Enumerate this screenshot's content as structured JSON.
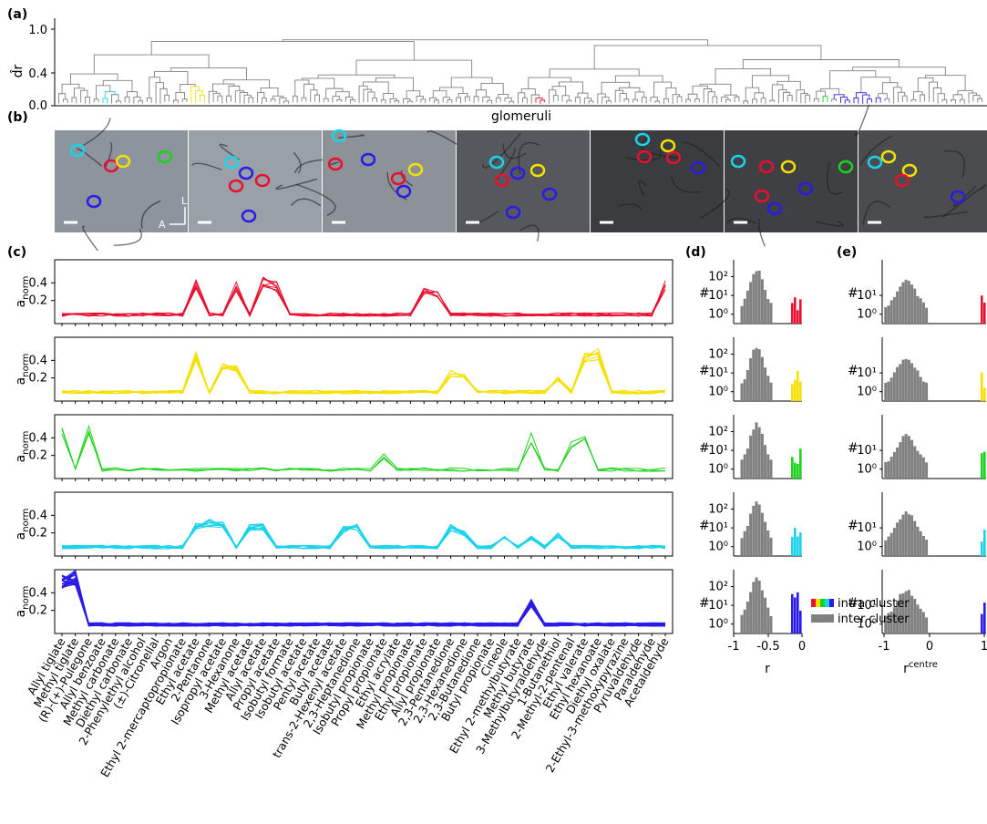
{
  "panels": {
    "a": {
      "label": "(a)",
      "ylabel": "d̂r",
      "yticks": [
        "0.0",
        "0.4",
        "1.0"
      ],
      "xlabel": "glomeruli"
    },
    "b": {
      "label": "(b)",
      "orientation_L": "L",
      "orientation_A": "A",
      "image_count": 7
    },
    "c": {
      "label": "(c)",
      "ylabel_base": "a",
      "ylabel_sub": "norm",
      "rows": [
        {
          "cluster": "red",
          "color": "#e8102e",
          "yticks": [
            "0.2",
            "0.4"
          ]
        },
        {
          "cluster": "yellow",
          "color": "#f5e000",
          "yticks": [
            "0.2",
            "0.4"
          ]
        },
        {
          "cluster": "green",
          "color": "#1cd21c",
          "yticks": [
            "0.2",
            "0.4"
          ]
        },
        {
          "cluster": "cyan",
          "color": "#1ad3ea",
          "yticks": [
            "0.2",
            "0.4"
          ]
        },
        {
          "cluster": "blue",
          "color": "#2b1be8",
          "yticks": [
            "0.2",
            "0.4"
          ]
        }
      ]
    },
    "d": {
      "label": "(d)",
      "ylabel": "#",
      "yticks": [
        "10⁰",
        "10¹",
        "10²"
      ],
      "xticks": [
        "-1",
        "-0.5",
        "0"
      ],
      "xlabel": "r"
    },
    "e": {
      "label": "(e)",
      "ylabel": "#",
      "yticks": [
        "10⁰",
        "10¹"
      ],
      "xticks": [
        "-1",
        "0",
        "1"
      ],
      "xlabel_base": "r",
      "xlabel_sup": "centre"
    }
  },
  "legend": {
    "intra": "intra cluster",
    "inter": "inter cluster"
  },
  "colors": {
    "red": "#e8102e",
    "yellow": "#f5e000",
    "green": "#1cd21c",
    "cyan": "#1ad3ea",
    "blue": "#2b1be8",
    "gray": "#808080",
    "dendro": "#808080"
  },
  "odorants": [
    "Allyl tiglate",
    "Methyl tiglate",
    "(R)-(+)-Pulegone",
    "Allyl benzoate",
    "Methyl carbonate",
    "Diethyl carbonate",
    "2-Phenylethyl alcohol",
    "(±)-Citronellal",
    "Argon",
    "Ethyl 2-mercaptopropionate",
    "Ethyl acetate",
    "2-Pentanone",
    "Isopropyl acetate",
    "3-Hexanone",
    "Methyl acetate",
    "Allyl acetate",
    "Propyl acetate",
    "Isobutyl formate",
    "Isobutyl acetate",
    "Pentyl acetate",
    "Butyl acetate",
    "trans-2-Hexenyl acetate",
    "2,3-Heptanedione",
    "Isobutyl propionate",
    "Propyl propionate",
    "Ethyl acrylate",
    "Methyl propionate",
    "Ethyl propionate",
    "Allyl propionate",
    "2,3-Pentanedione",
    "2,3-Hexanedione",
    "2,3-Butanedione",
    "Butyl propionate",
    "Cineole",
    "Ethyl 2-methylbutyrate",
    "Methyl butyrate",
    "3-Methylbutyraldehyde",
    "1-Butanethiol",
    "2-Methyl-2-pentenal",
    "Ethyl valerate",
    "Ethyl hexanoate",
    "Diethyl oxalate",
    "2-Ethyl-3-methoxypyrazine",
    "Pyruvaldehyde",
    "Paraldehyde",
    "Acetaldehyde"
  ]
}
